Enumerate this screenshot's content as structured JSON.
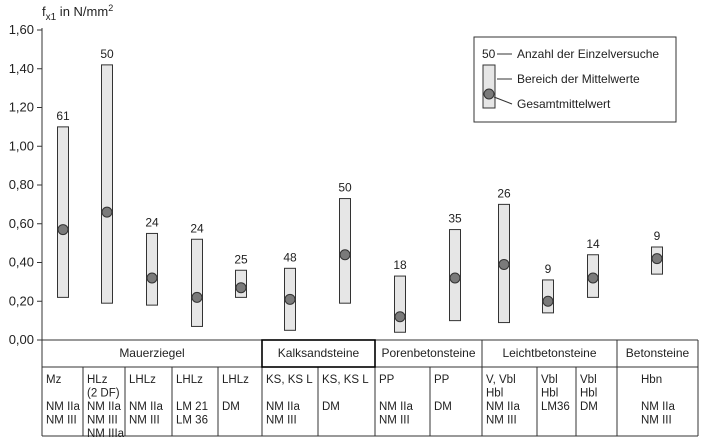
{
  "chart_data": {
    "type": "range-bar",
    "ylabel": {
      "main": "f",
      "sub": "x1",
      "unit": " in N/mm",
      "sup": "2"
    },
    "ylim": [
      0,
      1.6
    ],
    "yticks": [
      "0,00",
      "0,20",
      "0,40",
      "0,60",
      "0,80",
      "1,00",
      "1,20",
      "1,40",
      "1,60"
    ],
    "tick_values": [
      0,
      0.2,
      0.4,
      0.6,
      0.8,
      1.0,
      1.2,
      1.4,
      1.6
    ],
    "grid": false,
    "legend": {
      "position": "top-right",
      "sample_count": "50",
      "count_text": "Anzahl der Einzelversuche",
      "range_text": "Bereich der Mittelwerte",
      "mean_text": "Gesamtmittelwert"
    },
    "groups": [
      {
        "label": "Mauerziegel",
        "from": 0,
        "to": 4,
        "boxed": false
      },
      {
        "label": "Kalksandsteine",
        "from": 5,
        "to": 6,
        "boxed": true
      },
      {
        "label": "Porenbetonsteine",
        "from": 7,
        "to": 8,
        "boxed": false
      },
      {
        "label": "Leichtbetonsteine",
        "from": 9,
        "to": 11,
        "boxed": false
      },
      {
        "label": "Betonsteine",
        "from": 12,
        "to": 12,
        "boxed": false
      }
    ],
    "series": [
      {
        "count": "61",
        "min": 0.22,
        "max": 1.1,
        "mean": 0.57,
        "lines": [
          "Mz",
          "",
          "NM IIa",
          "NM III"
        ]
      },
      {
        "count": "50",
        "min": 0.19,
        "max": 1.42,
        "mean": 0.66,
        "lines": [
          "HLz",
          "(2 DF)",
          "NM IIa",
          "NM III",
          "NM IIIa"
        ]
      },
      {
        "count": "24",
        "min": 0.18,
        "max": 0.55,
        "mean": 0.32,
        "lines": [
          "LHLz",
          "",
          "NM IIa",
          "NM III"
        ]
      },
      {
        "count": "24",
        "min": 0.07,
        "max": 0.52,
        "mean": 0.22,
        "lines": [
          "LHLz",
          "",
          "LM 21",
          "LM 36"
        ]
      },
      {
        "count": "25",
        "min": 0.22,
        "max": 0.36,
        "mean": 0.27,
        "lines": [
          "LHLz",
          "",
          "DM"
        ]
      },
      {
        "count": "48",
        "min": 0.05,
        "max": 0.37,
        "mean": 0.21,
        "lines": [
          "KS, KS L",
          "",
          "NM IIa",
          "NM III"
        ]
      },
      {
        "count": "50",
        "min": 0.19,
        "max": 0.73,
        "mean": 0.44,
        "lines": [
          "KS, KS L",
          "",
          "DM"
        ]
      },
      {
        "count": "18",
        "min": 0.04,
        "max": 0.33,
        "mean": 0.12,
        "lines": [
          "PP",
          "",
          "NM IIa",
          "NM III"
        ]
      },
      {
        "count": "35",
        "min": 0.1,
        "max": 0.57,
        "mean": 0.32,
        "lines": [
          "PP",
          "",
          "DM"
        ]
      },
      {
        "count": "26",
        "min": 0.09,
        "max": 0.7,
        "mean": 0.39,
        "lines": [
          "V, Vbl",
          "Hbl",
          "NM IIa",
          "NM III"
        ]
      },
      {
        "count": "9",
        "min": 0.14,
        "max": 0.31,
        "mean": 0.2,
        "lines": [
          "Vbl",
          "Hbl",
          "LM36"
        ]
      },
      {
        "count": "14",
        "min": 0.22,
        "max": 0.44,
        "mean": 0.32,
        "lines": [
          "Vbl",
          "Hbl",
          "DM"
        ]
      },
      {
        "count": "9",
        "min": 0.34,
        "max": 0.48,
        "mean": 0.42,
        "lines": [
          "Hbn",
          "",
          "NM IIa",
          "NM III"
        ]
      }
    ]
  },
  "colors": {
    "bar_fill": "#e6e6e6",
    "mean_dot": "#7a7a7a",
    "line": "#333333",
    "text": "#222222"
  }
}
